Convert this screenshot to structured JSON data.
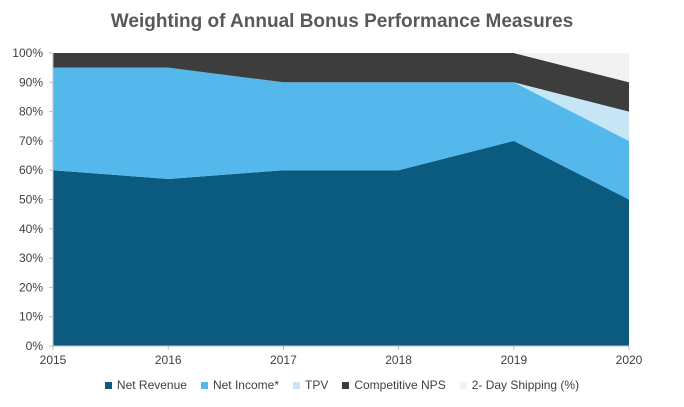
{
  "chart_data": {
    "type": "area",
    "stacked": true,
    "title": "Weighting of Annual Bonus Performance Measures",
    "x": [
      "2015",
      "2016",
      "2017",
      "2018",
      "2019",
      "2020"
    ],
    "y_tick_labels": [
      "0%",
      "10%",
      "20%",
      "30%",
      "40%",
      "50%",
      "60%",
      "70%",
      "80%",
      "90%",
      "100%"
    ],
    "ylim": [
      0,
      100
    ],
    "grid": false,
    "legend_position": "bottom",
    "series": [
      {
        "name": "Net Revenue",
        "color": "#0b5a80",
        "values": [
          60,
          57,
          60,
          60,
          70,
          50
        ]
      },
      {
        "name": "Net Income*",
        "color": "#55b8ec",
        "values": [
          35,
          38,
          30,
          30,
          20,
          20
        ]
      },
      {
        "name": "TPV",
        "color": "#c6e6f6",
        "values": [
          0,
          0,
          0,
          0,
          0,
          10
        ]
      },
      {
        "name": "Competitive NPS",
        "color": "#3d3d3d",
        "values": [
          5,
          5,
          10,
          10,
          10,
          10
        ]
      },
      {
        "name": "2- Day Shipping (%)",
        "color": "#f2f2f2",
        "values": [
          0,
          0,
          0,
          0,
          0,
          10
        ]
      }
    ]
  }
}
